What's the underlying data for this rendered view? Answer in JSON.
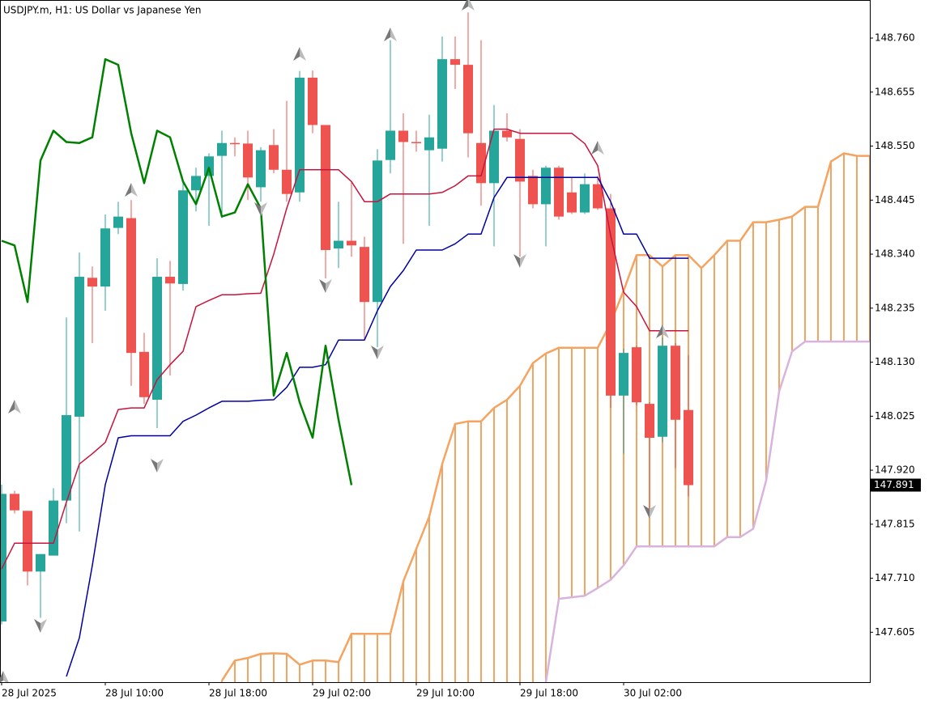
{
  "chart_data": {
    "type": "candlestick",
    "title": "USDJPY.m, H1:  US Dollar vs Japanese Yen",
    "categories": [
      "28 Jul 2025",
      null,
      null,
      null,
      null,
      null,
      null,
      null,
      "28 Jul 10:00",
      null,
      null,
      null,
      null,
      null,
      null,
      null,
      "28 Jul 18:00",
      null,
      null,
      null,
      null,
      null,
      null,
      null,
      "29 Jul 02:00",
      null,
      null,
      null,
      null,
      null,
      null,
      null,
      "29 Jul 10:00",
      null,
      null,
      null,
      null,
      null,
      null,
      null,
      "29 Jul 18:00",
      null,
      null,
      null,
      null,
      null,
      null,
      null,
      "30 Jul 02:00",
      null,
      null,
      null,
      null,
      null,
      null,
      null,
      null,
      null,
      null,
      null,
      null,
      null,
      null,
      null,
      null,
      null,
      null,
      null
    ],
    "ylim": [
      147.508,
      148.834
    ],
    "yticks": [
      {
        "value": 148.76,
        "label": "148.760"
      },
      {
        "value": 148.655,
        "label": "148.655"
      },
      {
        "value": 148.55,
        "label": "148.550"
      },
      {
        "value": 148.445,
        "label": "148.445"
      },
      {
        "value": 148.34,
        "label": "148.340"
      },
      {
        "value": 148.235,
        "label": "148.235"
      },
      {
        "value": 148.13,
        "label": "148.130"
      },
      {
        "value": 148.025,
        "label": "148.025"
      },
      {
        "value": 147.92,
        "label": "147.920"
      },
      {
        "value": 147.815,
        "label": "147.815"
      },
      {
        "value": 147.71,
        "label": "147.710"
      },
      {
        "value": 147.605,
        "label": "147.605"
      }
    ],
    "current_price": {
      "value": 147.891,
      "label": "147.891"
    },
    "grid": false,
    "candles": {
      "up_color": "#26a69a",
      "down_color": "#ef5350",
      "open": [
        147.626,
        147.874,
        147.841,
        147.723,
        147.754,
        147.861,
        148.024,
        148.294,
        148.277,
        148.391,
        148.41,
        148.15,
        148.057,
        148.296,
        148.282,
        148.464,
        148.492,
        148.531,
        148.556,
        148.555,
        148.47,
        148.552,
        148.504,
        148.46,
        148.683,
        148.591,
        148.351,
        148.366,
        148.354,
        148.247,
        148.523,
        148.58,
        148.558,
        148.542,
        148.545,
        148.719,
        148.708,
        148.556,
        148.478,
        148.58,
        148.564,
        148.492,
        148.437,
        148.508,
        148.46,
        148.421,
        148.476,
        148.429,
        148.065,
        148.159,
        148.049,
        147.985,
        148.162,
        148.037
      ],
      "high": [
        147.892,
        147.88,
        147.841,
        147.757,
        147.885,
        148.217,
        148.343,
        148.316,
        148.417,
        148.442,
        148.445,
        148.187,
        148.332,
        148.327,
        148.486,
        148.508,
        148.536,
        148.58,
        148.567,
        148.58,
        148.548,
        148.583,
        148.638,
        148.696,
        148.697,
        148.591,
        148.442,
        148.481,
        148.374,
        148.544,
        148.756,
        148.614,
        148.58,
        148.611,
        148.763,
        148.763,
        148.81,
        148.756,
        148.63,
        148.614,
        148.583,
        148.504,
        148.512,
        148.512,
        148.489,
        148.497,
        148.492,
        148.457,
        148.156,
        148.162,
        148.052,
        148.178,
        148.167,
        148.143
      ],
      "low": [
        147.62,
        147.836,
        147.696,
        147.633,
        147.754,
        147.817,
        147.801,
        148.167,
        148.23,
        148.379,
        148.084,
        148.049,
        148.002,
        148.104,
        148.269,
        148.423,
        148.395,
        148.41,
        148.53,
        148.445,
        148.442,
        148.497,
        148.442,
        148.442,
        148.575,
        148.293,
        148.313,
        148.335,
        148.175,
        148.159,
        148.497,
        148.36,
        148.539,
        148.395,
        148.52,
        148.661,
        148.528,
        148.434,
        148.355,
        148.559,
        148.335,
        148.429,
        148.355,
        148.407,
        148.418,
        148.418,
        148.426,
        148.041,
        147.952,
        148.046,
        147.83,
        147.974,
        147.924,
        147.869
      ],
      "close": [
        147.874,
        147.842,
        147.723,
        147.757,
        147.861,
        148.027,
        148.296,
        148.277,
        148.39,
        148.413,
        148.148,
        148.062,
        148.296,
        148.283,
        148.464,
        148.492,
        148.53,
        148.556,
        148.555,
        148.489,
        148.542,
        148.504,
        148.457,
        148.683,
        148.591,
        148.348,
        148.366,
        148.357,
        148.247,
        148.522,
        148.58,
        148.558,
        148.556,
        148.567,
        148.719,
        148.708,
        148.575,
        148.478,
        148.58,
        148.567,
        148.481,
        148.437,
        148.508,
        148.413,
        148.421,
        148.476,
        148.429,
        148.065,
        148.148,
        148.052,
        147.983,
        148.162,
        148.018,
        147.891
      ]
    },
    "lines": [
      {
        "color": "#c8143c",
        "values": [
          147.728,
          147.778,
          147.778,
          147.778,
          147.778,
          147.858,
          147.932,
          147.952,
          147.974,
          148.038,
          148.041,
          148.041,
          148.096,
          148.125,
          148.151,
          148.238,
          148.25,
          148.261,
          148.261,
          148.263,
          148.264,
          148.34,
          148.429,
          148.504,
          148.504,
          148.504,
          148.504,
          148.481,
          148.442,
          148.442,
          148.457,
          148.457,
          148.457,
          148.457,
          148.46,
          148.473,
          148.492,
          148.492,
          148.583,
          148.583,
          148.575,
          148.575,
          148.575,
          148.575,
          148.575,
          148.555,
          148.512,
          148.376,
          148.266,
          148.238,
          148.191,
          148.191,
          148.191,
          148.191
        ]
      },
      {
        "color": "#0000a0",
        "values": [
          null,
          null,
          null,
          null,
          null,
          147.519,
          147.594,
          147.735,
          147.892,
          147.983,
          147.987,
          147.987,
          147.987,
          147.987,
          148.015,
          148.027,
          148.041,
          148.054,
          148.054,
          148.054,
          148.056,
          148.057,
          148.081,
          148.12,
          148.12,
          148.125,
          148.173,
          148.173,
          148.173,
          148.23,
          148.277,
          148.308,
          148.348,
          148.348,
          148.348,
          148.36,
          148.379,
          148.379,
          148.45,
          148.489,
          148.489,
          148.489,
          148.489,
          148.489,
          148.489,
          148.489,
          148.489,
          148.442,
          148.379,
          148.379,
          148.332,
          148.332,
          148.332,
          148.332
        ]
      },
      {
        "color": "#008000",
        "width": 2.5,
        "values": [
          148.366,
          148.357,
          148.247,
          148.522,
          148.58,
          148.558,
          148.556,
          148.567,
          148.719,
          148.708,
          148.575,
          148.478,
          148.58,
          148.567,
          148.481,
          148.437,
          148.508,
          148.413,
          148.421,
          148.476,
          148.429,
          148.065,
          148.148,
          148.052,
          147.983,
          148.162,
          148.018,
          147.891
        ]
      }
    ],
    "cloud": {
      "hatch_color": "#f4a460",
      "span_a": {
        "color": "#f4a460",
        "values": [
          null,
          null,
          null,
          null,
          null,
          null,
          null,
          null,
          null,
          null,
          null,
          null,
          null,
          null,
          null,
          null,
          null,
          147.511,
          147.55,
          147.555,
          147.563,
          147.564,
          147.563,
          147.542,
          147.55,
          147.55,
          147.547,
          147.602,
          147.602,
          147.602,
          147.602,
          147.704,
          147.767,
          147.83,
          147.932,
          148.01,
          148.015,
          148.015,
          148.041,
          148.057,
          148.084,
          148.128,
          148.147,
          148.158,
          148.158,
          148.158,
          148.158,
          148.206,
          148.269,
          148.338,
          148.338,
          148.316,
          148.338,
          148.338,
          148.313,
          148.338,
          148.366,
          148.366,
          148.402,
          148.402,
          148.407,
          148.413,
          148.432,
          148.432,
          148.52,
          148.536,
          148.531,
          148.531
        ]
      },
      "span_b": {
        "color": "#d8b4dc",
        "values": [
          null,
          null,
          null,
          null,
          null,
          null,
          null,
          null,
          null,
          null,
          null,
          null,
          null,
          null,
          null,
          null,
          null,
          null,
          null,
          null,
          null,
          null,
          null,
          null,
          null,
          null,
          null,
          null,
          null,
          null,
          null,
          null,
          null,
          null,
          null,
          null,
          null,
          null,
          null,
          null,
          null,
          null,
          147.508,
          147.67,
          147.673,
          147.676,
          147.691,
          147.707,
          147.735,
          147.772,
          147.772,
          147.772,
          147.772,
          147.772,
          147.772,
          147.772,
          147.79,
          147.79,
          147.806,
          147.9,
          148.073,
          148.151,
          148.17,
          148.17,
          148.17,
          148.17,
          148.17,
          148.17
        ]
      }
    }
  }
}
